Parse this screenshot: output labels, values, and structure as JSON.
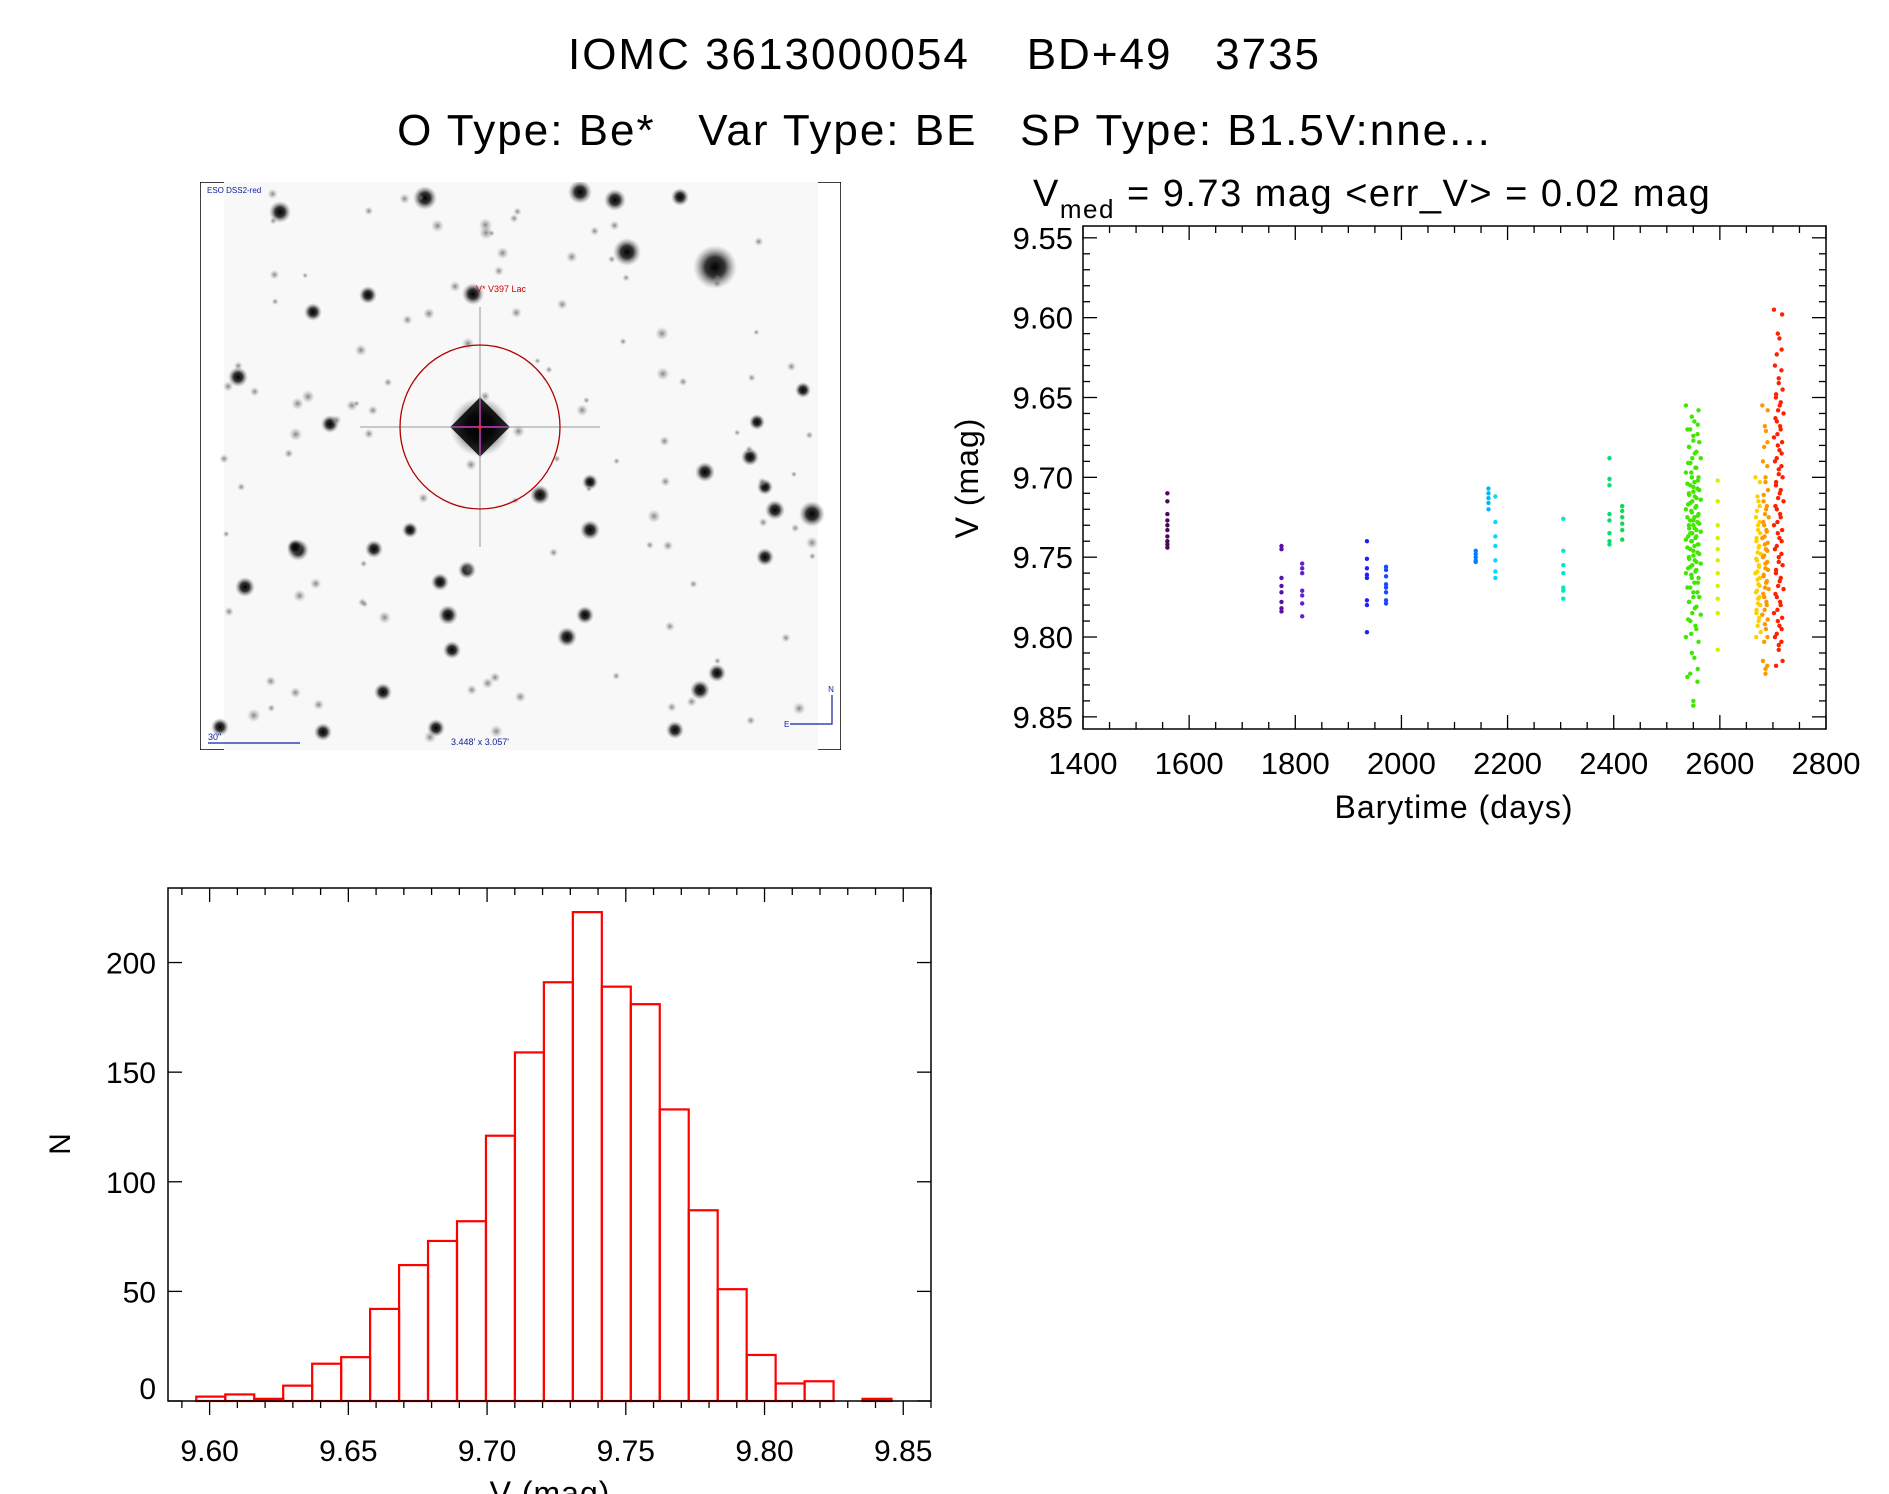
{
  "header": {
    "title": "IOMC 3613000054    BD+49   3735",
    "subtitle": "O Type: Be*   Var Type: BE   SP Type: B1.5V:nne..."
  },
  "finder_image": {
    "survey_label": "ESO DSS2-red",
    "target_label": "V* V397 Lac",
    "scale_bar_label": "30\"",
    "field_size_label": "3.448' x 3.057'",
    "north_label": "N",
    "east_label": "E"
  },
  "chart_data": [
    {
      "type": "scatter",
      "title_prefix": "V",
      "title_sub": "med",
      "title_rest": " = 9.73 mag <err_V> = 0.02 mag",
      "xlabel": "Barytime (days)",
      "ylabel": "V (mag)",
      "xlim": [
        1400,
        2800
      ],
      "ylim": [
        9.8576,
        9.5426
      ],
      "y_inverted": true,
      "xticks": [
        "1400",
        "1600",
        "1800",
        "2000",
        "2200",
        "2400",
        "2600",
        "2800"
      ],
      "yticks": [
        "9.55",
        "9.60",
        "9.65",
        "9.70",
        "9.75",
        "9.80",
        "9.85"
      ],
      "groups": [
        {
          "x": 1559,
          "color": "#4a0a55",
          "v": [
            9.71,
            9.715,
            9.723,
            9.727,
            9.73,
            9.733,
            9.737,
            9.74,
            9.742,
            9.744
          ]
        },
        {
          "x": 1774,
          "color": "#5a10a0",
          "v": [
            9.743,
            9.745,
            9.763,
            9.768,
            9.772,
            9.778,
            9.782,
            9.784
          ]
        },
        {
          "x": 1813,
          "color": "#6020d0",
          "v": [
            9.754,
            9.757,
            9.76,
            9.771,
            9.774,
            9.779,
            9.787
          ]
        },
        {
          "x": 1935,
          "color": "#2020ff",
          "v": [
            9.74,
            9.751,
            9.757,
            9.761,
            9.763,
            9.777,
            9.78,
            9.797
          ]
        },
        {
          "x": 1971,
          "color": "#1848ff",
          "v": [
            9.756,
            9.758,
            9.762,
            9.767,
            9.769,
            9.772,
            9.777,
            9.779
          ]
        },
        {
          "x": 2140,
          "color": "#0080ff",
          "v": [
            9.746,
            9.748,
            9.75,
            9.752,
            9.753
          ]
        },
        {
          "x": 2164,
          "color": "#00b8ff",
          "v": [
            9.707,
            9.71,
            9.713,
            9.716,
            9.72
          ]
        },
        {
          "x": 2177,
          "color": "#00dcff",
          "v": [
            9.712,
            9.728,
            9.737,
            9.743,
            9.752,
            9.759,
            9.763
          ]
        },
        {
          "x": 2305,
          "color": "#00e8c8",
          "v": [
            9.726,
            9.746,
            9.755,
            9.76,
            9.769,
            9.771,
            9.776
          ]
        },
        {
          "x": 2392,
          "color": "#00e070",
          "v": [
            9.688,
            9.701,
            9.705,
            9.723,
            9.727,
            9.735,
            9.74,
            9.742
          ]
        },
        {
          "x": 2416,
          "color": "#10d850",
          "v": [
            9.718,
            9.721,
            9.725,
            9.729,
            9.733,
            9.739
          ]
        },
        {
          "x": 2550,
          "spread": 14,
          "color": "#40e800",
          "v": [
            9.655,
            9.662,
            9.667,
            9.67,
            9.674,
            9.678,
            9.681,
            9.685,
            9.688,
            9.691,
            9.694,
            9.697,
            9.7,
            9.702,
            9.704,
            9.706,
            9.708,
            9.71,
            9.712,
            9.714,
            9.716,
            9.718,
            9.72,
            9.722,
            9.724,
            9.725,
            9.727,
            9.729,
            9.73,
            9.732,
            9.734,
            9.735,
            9.737,
            9.739,
            9.74,
            9.742,
            9.744,
            9.746,
            9.748,
            9.75,
            9.752,
            9.754,
            9.756,
            9.758,
            9.76,
            9.763,
            9.766,
            9.769,
            9.772,
            9.775,
            9.778,
            9.782,
            9.786,
            9.79,
            9.795,
            9.8,
            9.81,
            9.82,
            9.825,
            9.84
          ]
        },
        {
          "x": 2596,
          "color": "#d8f000",
          "v": [
            9.702,
            9.715,
            9.73,
            9.738,
            9.745,
            9.752,
            9.76,
            9.768,
            9.776,
            9.785,
            9.808
          ]
        },
        {
          "x": 2672,
          "spread": 5,
          "color": "#ffd000",
          "v": [
            9.7,
            9.712,
            9.718,
            9.725,
            9.73,
            9.735,
            9.74,
            9.744,
            9.748,
            9.752,
            9.756,
            9.76,
            9.764,
            9.768,
            9.772,
            9.776,
            9.78,
            9.785,
            9.79,
            9.797
          ]
        },
        {
          "x": 2686,
          "spread": 6,
          "color": "#ff9800",
          "v": [
            9.655,
            9.668,
            9.678,
            9.69,
            9.7,
            9.708,
            9.715,
            9.72,
            9.725,
            9.73,
            9.734,
            9.738,
            9.742,
            9.746,
            9.75,
            9.754,
            9.758,
            9.762,
            9.766,
            9.77,
            9.775,
            9.78,
            9.786,
            9.792,
            9.8,
            9.815,
            9.82
          ]
        },
        {
          "x": 2711,
          "spread": 9,
          "color": "#ff2000",
          "v": [
            9.595,
            9.61,
            9.62,
            9.63,
            9.638,
            9.645,
            9.65,
            9.655,
            9.66,
            9.665,
            9.67,
            9.675,
            9.68,
            9.685,
            9.69,
            9.695,
            9.7,
            9.705,
            9.71,
            9.715,
            9.72,
            9.725,
            9.73,
            9.735,
            9.74,
            9.745,
            9.75,
            9.755,
            9.76,
            9.765,
            9.77,
            9.775,
            9.78,
            9.785,
            9.79,
            9.795,
            9.8,
            9.805,
            9.815
          ]
        }
      ]
    },
    {
      "type": "bar",
      "subtype": "histogram",
      "xlabel": "V (mag)",
      "ylabel": "N",
      "xlim": [
        9.585,
        9.86
      ],
      "ylim": [
        0,
        234
      ],
      "xticks": [
        "9.60",
        "9.65",
        "9.70",
        "9.75",
        "9.80",
        "9.85"
      ],
      "yticks": [
        "0",
        "50",
        "100",
        "150",
        "200"
      ],
      "bin_start": 9.5952,
      "bin_width": 0.01044,
      "color": "#ff0000",
      "counts": [
        2,
        3,
        1,
        7,
        17,
        20,
        42,
        62,
        73,
        82,
        121,
        159,
        191,
        223,
        189,
        181,
        133,
        87,
        51,
        21,
        8,
        9,
        0,
        1
      ]
    }
  ]
}
